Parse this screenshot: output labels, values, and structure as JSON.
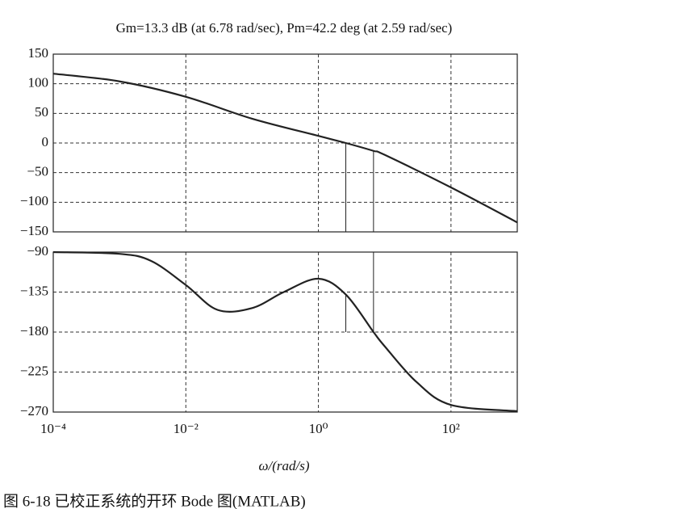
{
  "chart_data": [
    {
      "type": "line",
      "title": "Gm=13.3 dB (at 6.78 rad/sec), Pm=42.2 deg (at 2.59 rad/sec)",
      "log_x": true,
      "grid": true,
      "xlim": [
        0.0001,
        1000
      ],
      "ylim": [
        -150,
        150
      ],
      "xticks": [
        0.0001,
        0.01,
        1,
        100
      ],
      "yticks": [
        150,
        100,
        50,
        0,
        {
          "value": -50,
          "label": "−50"
        },
        {
          "value": -100,
          "label": "−100"
        },
        {
          "value": -150,
          "label": "−150"
        }
      ],
      "x": [
        0.0001,
        0.001,
        0.01,
        0.1,
        1,
        2.59,
        6.78,
        10,
        100,
        1000
      ],
      "series": [
        {
          "color": "#222222",
          "values": [
            117,
            104,
            78,
            41,
            12,
            0,
            -13.3,
            -20,
            -75,
            -134
          ]
        }
      ]
    },
    {
      "type": "line",
      "x_label": "ω/(rad/s)",
      "log_x": true,
      "grid": true,
      "xlim": [
        0.0001,
        1000
      ],
      "ylim": [
        -270,
        -90
      ],
      "xticks": [
        {
          "value": 0.0001,
          "label": "10⁻⁴"
        },
        {
          "value": 0.01,
          "label": "10⁻²"
        },
        {
          "value": 1,
          "label": "10⁰"
        },
        {
          "value": 100,
          "label": "10²"
        }
      ],
      "yticks": [
        {
          "value": -90,
          "label": "−90"
        },
        {
          "value": -135,
          "label": "−135"
        },
        {
          "value": -180,
          "label": "−180"
        },
        {
          "value": -225,
          "label": "−225"
        },
        {
          "value": -270,
          "label": "−270"
        }
      ],
      "x": [
        0.0001,
        0.001,
        0.003,
        0.01,
        0.03,
        0.1,
        0.3,
        1,
        2.59,
        6.78,
        10,
        30,
        100,
        1000
      ],
      "series": [
        {
          "color": "#222222",
          "values": [
            -90,
            -92,
            -100,
            -127,
            -155,
            -153,
            -135,
            -120,
            -137.8,
            -180,
            -196,
            -236,
            -262,
            -269
          ]
        }
      ]
    }
  ],
  "caption": "图 6-18  已校正系统的开环 Bode 图(MATLAB)"
}
